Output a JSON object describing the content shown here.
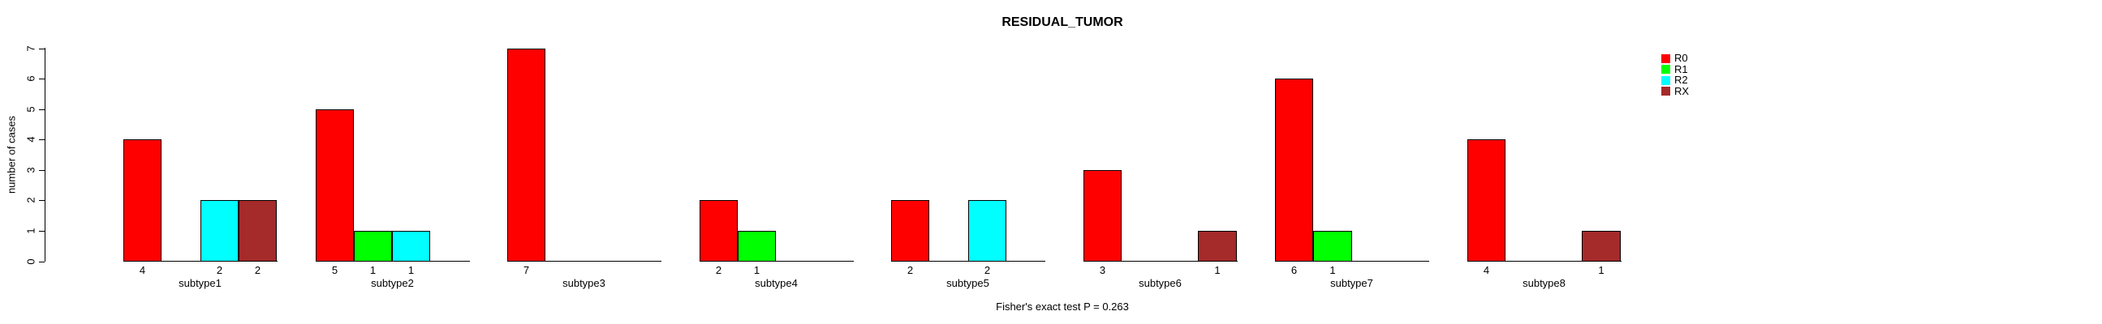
{
  "chart_data": {
    "type": "bar",
    "title": "RESIDUAL_TUMOR",
    "ylabel": "number of cases",
    "xlabel": "",
    "annotation": "Fisher's exact test P = 0.263",
    "categories": [
      "subtype1",
      "subtype2",
      "subtype3",
      "subtype4",
      "subtype5",
      "subtype6",
      "subtype7",
      "subtype8"
    ],
    "yticks": [
      0,
      1,
      2,
      3,
      4,
      5,
      6,
      7
    ],
    "ylim": [
      0,
      7
    ],
    "grid": false,
    "legend_position": "top-right",
    "series": [
      {
        "name": "R0",
        "color": "#FF0000",
        "values": [
          4,
          5,
          7,
          2,
          2,
          3,
          6,
          4
        ]
      },
      {
        "name": "R1",
        "color": "#00FF00",
        "values": [
          null,
          1,
          null,
          1,
          null,
          null,
          1,
          null
        ]
      },
      {
        "name": "R2",
        "color": "#00FFFF",
        "values": [
          2,
          1,
          null,
          null,
          2,
          null,
          null,
          null
        ]
      },
      {
        "name": "RX",
        "color": "#A52A2A",
        "values": [
          2,
          null,
          null,
          null,
          null,
          1,
          null,
          1
        ]
      }
    ]
  }
}
